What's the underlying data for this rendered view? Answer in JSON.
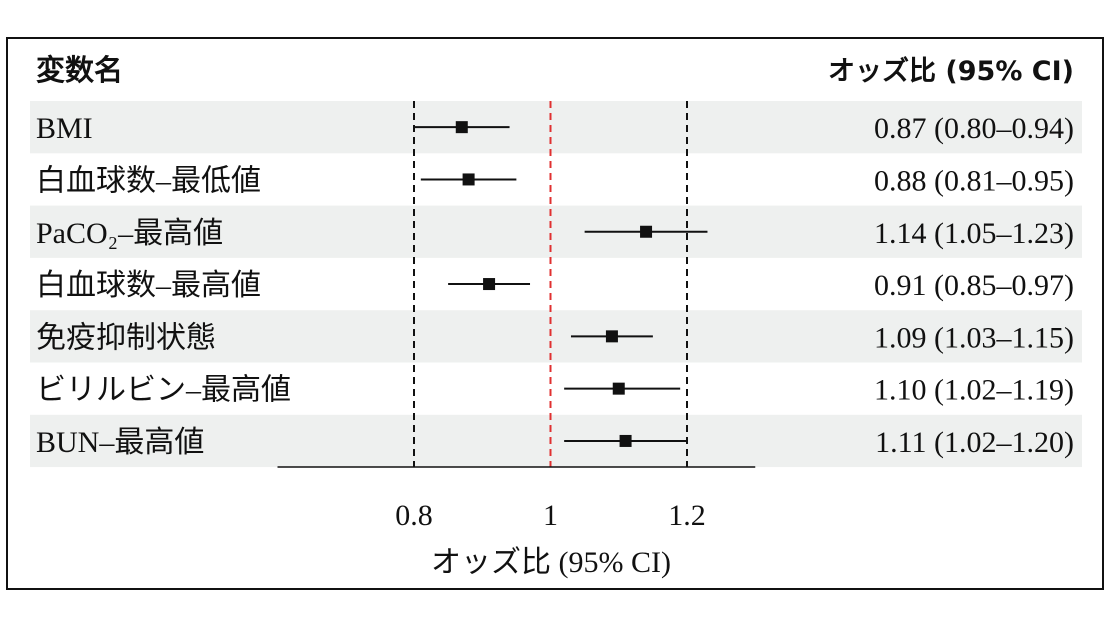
{
  "header": {
    "left_title": "変数名",
    "right_title": "オッズ比 (95% CI)"
  },
  "colors": {
    "row_band": "#eef0ef",
    "reference_line": "#e03030",
    "marker": "#111111",
    "text": "#111111"
  },
  "chart_data": {
    "type": "forest",
    "xlabel": "オッズ比 (95% CI)",
    "xlim": [
      0.6,
      1.3
    ],
    "xticks": [
      0.8,
      1,
      1.2
    ],
    "xtick_labels": [
      "0.8",
      "1",
      "1.2"
    ],
    "reference_line": 1,
    "dashed_lines": [
      0.8,
      1.2
    ],
    "rows": [
      {
        "label": "BMI",
        "or": 0.87,
        "lo": 0.8,
        "hi": 0.94,
        "ci_text": "0.87 (0.80–0.94)",
        "shaded": true
      },
      {
        "label": "白血球数–最低値",
        "or": 0.88,
        "lo": 0.81,
        "hi": 0.95,
        "ci_text": "0.88 (0.81–0.95)",
        "shaded": false
      },
      {
        "label": "PaCO₂–最高値",
        "or": 1.14,
        "lo": 1.05,
        "hi": 1.23,
        "ci_text": "1.14 (1.05–1.23)",
        "shaded": true
      },
      {
        "label": "白血球数–最高値",
        "or": 0.91,
        "lo": 0.85,
        "hi": 0.97,
        "ci_text": "0.91 (0.85–0.97)",
        "shaded": false
      },
      {
        "label": "免疫抑制状態",
        "or": 1.09,
        "lo": 1.03,
        "hi": 1.15,
        "ci_text": "1.09 (1.03–1.15)",
        "shaded": true
      },
      {
        "label": "ビリルビン–最高値",
        "or": 1.1,
        "lo": 1.02,
        "hi": 1.19,
        "ci_text": "1.10 (1.02–1.19)",
        "shaded": false
      },
      {
        "label": "BUN–最高値",
        "or": 1.11,
        "lo": 1.02,
        "hi": 1.2,
        "ci_text": "1.11 (1.02–1.20)",
        "shaded": true
      }
    ]
  }
}
